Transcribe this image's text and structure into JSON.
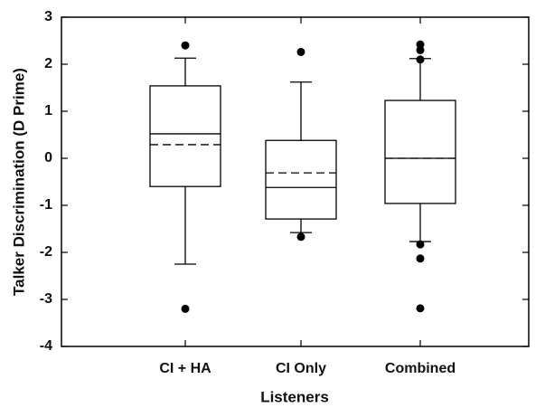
{
  "chart_data": {
    "type": "box",
    "x_label": "Listeners",
    "y_label": "Talker Discrimination (D Prime)",
    "categories": [
      "CI + HA",
      "CI Only",
      "Combined"
    ],
    "boxes": [
      {
        "min": -2.25,
        "q1": -0.6,
        "median": 0.52,
        "mean": 0.29,
        "q3": 1.54,
        "max": 2.13,
        "outliers": [
          2.4,
          -3.2
        ]
      },
      {
        "min": -1.58,
        "q1": -1.29,
        "median": -0.62,
        "mean": -0.31,
        "q3": 0.38,
        "max": 1.62,
        "outliers": [
          2.26,
          -1.67
        ]
      },
      {
        "min": -1.77,
        "q1": -0.96,
        "median": 0,
        "mean": 0,
        "q3": 1.23,
        "max": 2.12,
        "outliers": [
          2.42,
          2.3,
          2.1,
          -1.83,
          -2.13,
          -3.19
        ]
      }
    ],
    "color": "#000000",
    "ylim": [
      -4,
      3
    ],
    "yticks": [
      -4,
      -3,
      -2,
      -1,
      0,
      1,
      2,
      3
    ]
  }
}
